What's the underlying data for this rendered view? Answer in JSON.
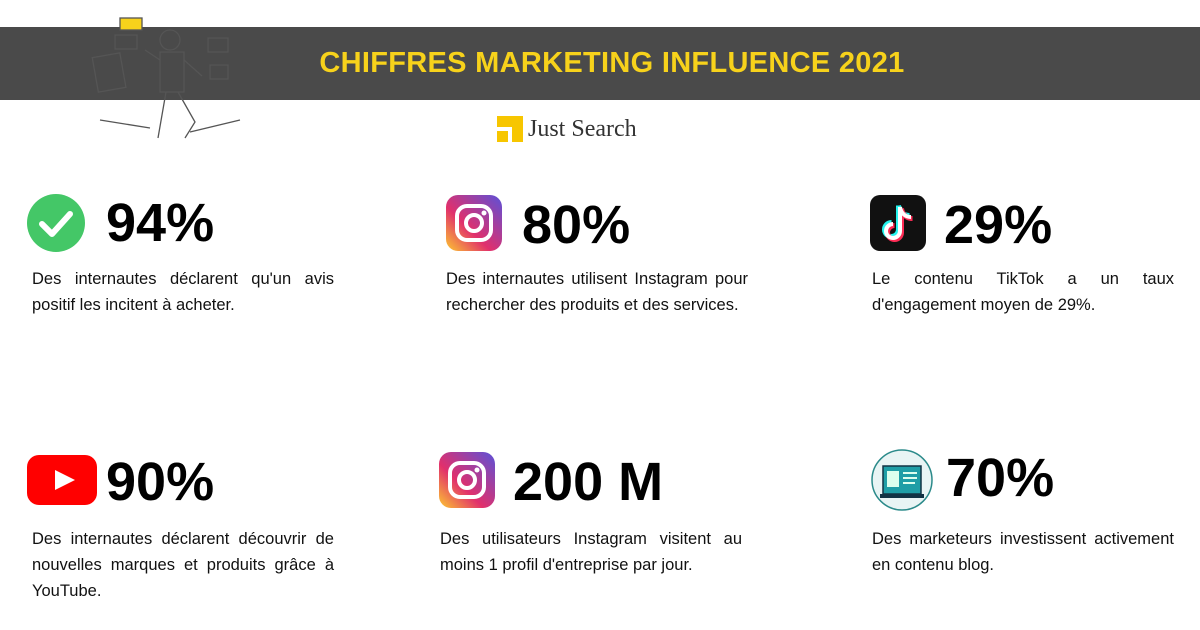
{
  "header": {
    "title": "CHIFFRES MARKETING INFLUENCE 2021",
    "brand": "Just Search"
  },
  "stats": [
    {
      "value": "94%",
      "text": "Des internautes déclarent qu'un avis positif les incitent à acheter."
    },
    {
      "value": "80%",
      "text": "Des internautes utilisent Instagram pour rechercher des produits et des services."
    },
    {
      "value": "29%",
      "text": "Le contenu TikTok a un taux d'engagement moyen de 29%."
    },
    {
      "value": "90%",
      "text": "Des internautes déclarent découvrir de nouvelles marques et produits grâce à YouTube."
    },
    {
      "value": "200 M",
      "text": "Des utilisateurs Instagram visitent au moins 1 profil d'entreprise par jour."
    },
    {
      "value": "70%",
      "text": "Des marketeurs investissent activement en contenu blog."
    }
  ]
}
